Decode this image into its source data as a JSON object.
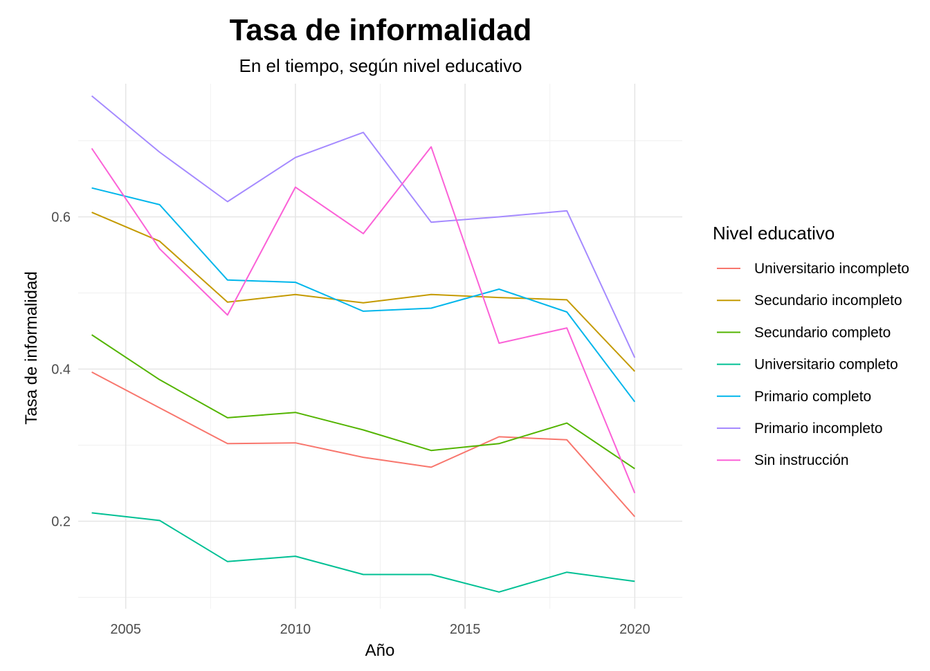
{
  "chart_data": {
    "type": "line",
    "title": "Tasa de informalidad",
    "subtitle": "En el tiempo, según nivel educativo",
    "xlabel": "Año",
    "ylabel": "Tasa de informalidad",
    "legend_title": "Nivel educativo",
    "legend_position": "right",
    "grid": true,
    "xlim": [
      2003.6,
      2021.4
    ],
    "ylim": [
      0.085,
      0.775
    ],
    "x_ticks": [
      2005,
      2010,
      2015,
      2020
    ],
    "x_tick_labels": [
      "2005",
      "2010",
      "2015",
      "2020"
    ],
    "y_ticks": [
      0.2,
      0.4,
      0.6
    ],
    "y_tick_labels": [
      "0.2",
      "0.4",
      "0.6"
    ],
    "x": [
      2004,
      2006,
      2008,
      2010,
      2012,
      2014,
      2016,
      2018,
      2020
    ],
    "series": [
      {
        "name": "Universitario incompleto",
        "color": "#F8766D",
        "values": [
          0.396,
          0.349,
          0.302,
          0.303,
          0.284,
          0.271,
          0.311,
          0.307,
          0.206
        ]
      },
      {
        "name": "Secundario incompleto",
        "color": "#C49A00",
        "values": [
          0.606,
          0.568,
          0.488,
          0.498,
          0.487,
          0.498,
          0.494,
          0.491,
          0.397
        ]
      },
      {
        "name": "Secundario completo",
        "color": "#53B400",
        "values": [
          0.445,
          0.386,
          0.336,
          0.343,
          0.32,
          0.293,
          0.302,
          0.329,
          0.269
        ]
      },
      {
        "name": "Universitario completo",
        "color": "#00C094",
        "values": [
          0.211,
          0.201,
          0.147,
          0.154,
          0.13,
          0.13,
          0.107,
          0.133,
          0.121
        ]
      },
      {
        "name": "Primario completo",
        "color": "#00B6EB",
        "values": [
          0.638,
          0.616,
          0.517,
          0.514,
          0.476,
          0.48,
          0.505,
          0.475,
          0.357
        ]
      },
      {
        "name": "Primario incompleto",
        "color": "#A58AFF",
        "values": [
          0.759,
          0.685,
          0.62,
          0.678,
          0.711,
          0.593,
          0.6,
          0.608,
          0.415
        ]
      },
      {
        "name": "Sin instrucción",
        "color": "#FB61D7",
        "values": [
          0.69,
          0.558,
          0.471,
          0.639,
          0.578,
          0.692,
          0.434,
          0.454,
          0.237
        ]
      }
    ]
  }
}
